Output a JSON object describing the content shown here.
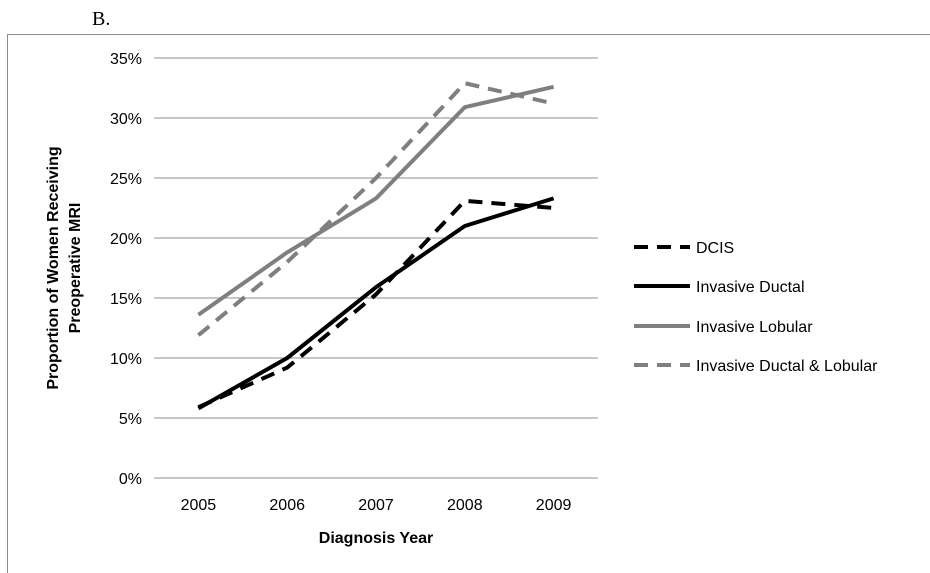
{
  "panel_label": "B.",
  "chart_data": {
    "type": "line",
    "x": [
      "2005",
      "2006",
      "2007",
      "2008",
      "2009"
    ],
    "xlabel": "Diagnosis Year",
    "ylabel_lines": [
      "Proportion of Women Receiving",
      "Preoperative MRI"
    ],
    "ylim": [
      0,
      35
    ],
    "yticks": [
      0,
      5,
      10,
      15,
      20,
      25,
      30,
      35
    ],
    "ytick_labels": [
      "0%",
      "5%",
      "10%",
      "15%",
      "20%",
      "25%",
      "30%",
      "35%"
    ],
    "grid": "horizontal",
    "legend_position": "right",
    "series": [
      {
        "name": "DCIS",
        "values": [
          5.9,
          9.2,
          15.3,
          23.1,
          22.5
        ],
        "color": "#000000",
        "style": "dashed"
      },
      {
        "name": "Invasive Ductal",
        "values": [
          5.8,
          10.0,
          15.9,
          21.0,
          23.3
        ],
        "color": "#000000",
        "style": "solid"
      },
      {
        "name": "Invasive Lobular",
        "values": [
          13.6,
          18.8,
          23.3,
          30.9,
          32.6
        ],
        "color": "#7f7f7f",
        "style": "solid"
      },
      {
        "name": "Invasive Ductal & Lobular",
        "values": [
          11.9,
          18.0,
          25.0,
          32.9,
          31.2
        ],
        "color": "#7f7f7f",
        "style": "dashed"
      }
    ]
  }
}
